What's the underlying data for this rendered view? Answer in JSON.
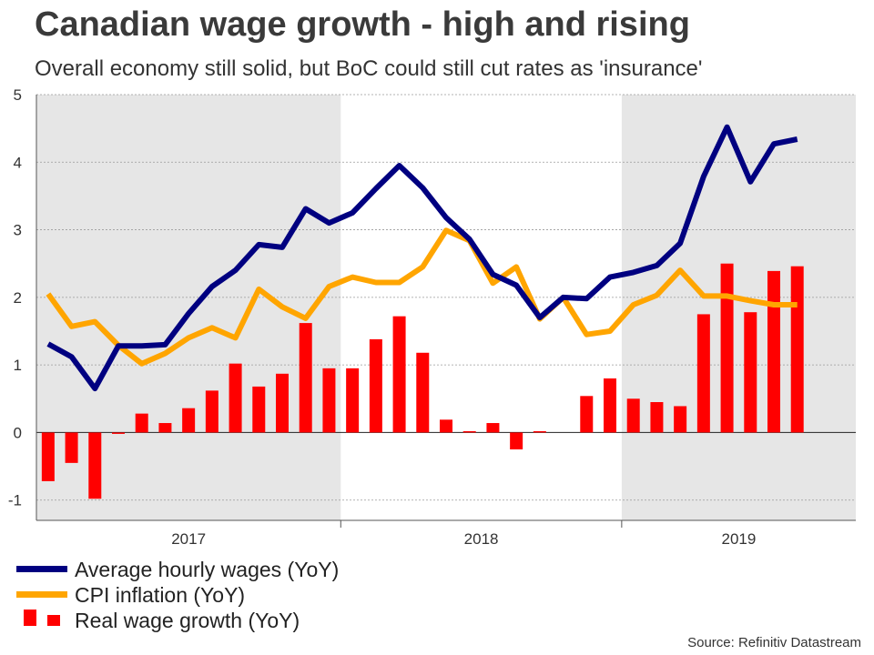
{
  "title": "Canadian wage growth - high and rising",
  "subtitle": "Overall economy still solid, but BoC could still cut rates as 'insurance'",
  "source": "Source: Refinitiv Datastream",
  "colors": {
    "wages": "#000080",
    "cpi": "#ffa500",
    "real": "#ff0000",
    "shade": "#e6e6e6",
    "grid": "#9a9a9a"
  },
  "chart_data": {
    "type": "line",
    "ylim": [
      -1.3,
      5
    ],
    "yticks": [
      -1,
      0,
      1,
      2,
      3,
      4,
      5
    ],
    "grid": true,
    "legend_position": "bottom-left",
    "x_year_labels": [
      "2017",
      "2018",
      "2019"
    ],
    "x": [
      "2016-12",
      "2017-01",
      "2017-02",
      "2017-03",
      "2017-04",
      "2017-05",
      "2017-06",
      "2017-07",
      "2017-08",
      "2017-09",
      "2017-10",
      "2017-11",
      "2017-12",
      "2018-01",
      "2018-02",
      "2018-03",
      "2018-04",
      "2018-05",
      "2018-06",
      "2018-07",
      "2018-08",
      "2018-09",
      "2018-10",
      "2018-11",
      "2018-12",
      "2019-01",
      "2019-02",
      "2019-03",
      "2019-04",
      "2019-05",
      "2019-06",
      "2019-07",
      "2019-08",
      "2019-09",
      "2019-10"
    ],
    "series": [
      {
        "name": "Average hourly wages (YoY)",
        "type": "line",
        "values": [
          1.31,
          1.12,
          0.65,
          1.28,
          1.28,
          1.3,
          1.76,
          2.16,
          2.4,
          2.78,
          2.74,
          3.31,
          3.1,
          3.25,
          3.61,
          3.95,
          3.62,
          3.18,
          2.86,
          2.34,
          2.18,
          1.7,
          2.0,
          1.98,
          2.3,
          2.37,
          2.47,
          2.8,
          3.79,
          4.52,
          3.71,
          4.27,
          4.34,
          null,
          null
        ]
      },
      {
        "name": "CPI inflation (YoY)",
        "type": "line",
        "values": [
          2.05,
          1.57,
          1.64,
          1.29,
          1.02,
          1.17,
          1.4,
          1.55,
          1.4,
          2.12,
          1.86,
          1.69,
          2.16,
          2.3,
          2.22,
          2.22,
          2.45,
          2.99,
          2.84,
          2.21,
          2.45,
          1.68,
          2.0,
          1.45,
          1.5,
          1.89,
          2.03,
          2.4,
          2.02,
          2.02,
          1.95,
          1.89,
          1.89,
          null,
          null
        ]
      },
      {
        "name": "Real wage growth (YoY)",
        "type": "bar",
        "values": [
          -0.72,
          -0.45,
          -0.98,
          -0.02,
          0.28,
          0.14,
          0.36,
          0.62,
          1.02,
          0.68,
          0.87,
          1.62,
          0.95,
          0.95,
          1.38,
          1.72,
          1.18,
          0.19,
          0.02,
          0.14,
          -0.25,
          0.02,
          null,
          0.54,
          0.8,
          0.5,
          0.45,
          0.39,
          1.75,
          2.5,
          1.78,
          2.39,
          2.46,
          null,
          null
        ]
      }
    ]
  }
}
